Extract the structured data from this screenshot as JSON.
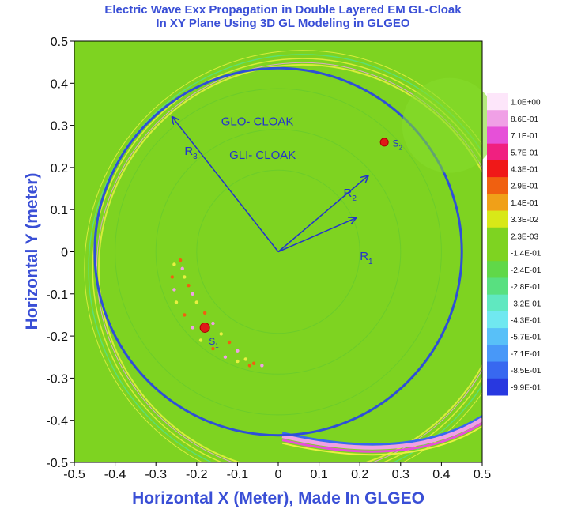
{
  "chart_data": {
    "type": "heatmap",
    "title": "Electric Wave Exx Propagation in Double Layered EM GL-Cloak",
    "subtitle": "In XY Plane Using 3D GL Modeling in GLGEO",
    "xlabel": "Horizontal X (Meter), Made In GLGEO",
    "ylabel": "Horizontal Y (meter)",
    "xlim": [
      -0.5,
      0.5
    ],
    "ylim": [
      -0.5,
      0.5
    ],
    "xticks": [
      "-0.5",
      "-0.4",
      "-0.3",
      "-0.2",
      "-0.1",
      "0",
      "0.1",
      "0.2",
      "0.3",
      "0.4",
      "0.5"
    ],
    "yticks": [
      "0.5",
      "0.4",
      "0.3",
      "0.2",
      "0.1",
      "0",
      "-0.1",
      "-0.2",
      "-0.3",
      "-0.4",
      "-0.5"
    ],
    "background_color": "#7ed321",
    "outer_circle": {
      "cx": 0,
      "cy": 0,
      "r": 0.45,
      "color": "#2e4fd8"
    },
    "inner_circles_r": [
      0.4,
      0.3,
      0.2
    ],
    "origin": [
      0,
      0
    ],
    "vectors": [
      {
        "name": "R",
        "sub": "3",
        "to": [
          -0.26,
          0.32
        ],
        "label_at": [
          -0.23,
          0.23
        ]
      },
      {
        "name": "R",
        "sub": "2",
        "to": [
          0.22,
          0.18
        ],
        "label_at": [
          0.16,
          0.13
        ]
      },
      {
        "name": "R",
        "sub": "1",
        "to": [
          0.19,
          0.08
        ],
        "label_at": [
          0.2,
          -0.02
        ]
      }
    ],
    "region_labels": [
      {
        "text": "GLO- CLOAK",
        "at": [
          -0.14,
          0.3
        ]
      },
      {
        "text": "GLI- CLOAK",
        "at": [
          -0.12,
          0.22
        ]
      }
    ],
    "sources": [
      {
        "name": "S",
        "sub": "1",
        "at": [
          -0.18,
          -0.18
        ],
        "label_at": [
          -0.17,
          -0.22
        ]
      },
      {
        "name": "S",
        "sub": "2",
        "at": [
          0.26,
          0.26
        ],
        "label_at": [
          0.28,
          0.25
        ]
      }
    ],
    "colorbar": {
      "labels": [
        "1.0E+00",
        "8.6E-01",
        "7.1E-01",
        "5.7E-01",
        "4.3E-01",
        "2.9E-01",
        "1.4E-01",
        "3.3E-02",
        "2.3E-03",
        "-1.4E-01",
        "-2.4E-01",
        "-2.8E-01",
        "-3.2E-01",
        "-4.3E-01",
        "-5.7E-01",
        "-7.1E-01",
        "-8.5E-01",
        "-9.9E-01"
      ],
      "colors": [
        "#fde6fa",
        "#f0a0e6",
        "#e650d8",
        "#f02080",
        "#f01818",
        "#f06010",
        "#f0a018",
        "#d8e818",
        "#7ed321",
        "#7ed321",
        "#60d848",
        "#58e080",
        "#60e8c0",
        "#70e8f0",
        "#58c0f8",
        "#4898f8",
        "#3868f0",
        "#2838e0"
      ]
    }
  }
}
